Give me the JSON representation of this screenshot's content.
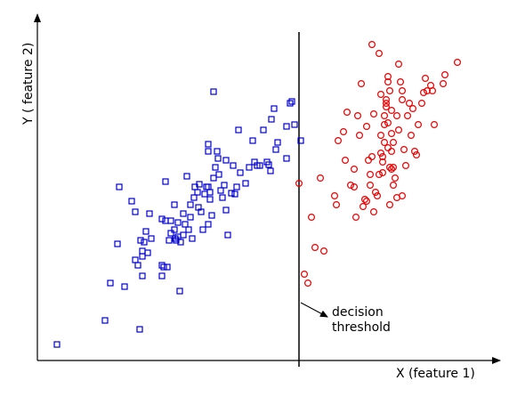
{
  "chart_data": {
    "type": "scatter",
    "xlabel": "X (feature 1)",
    "ylabel": "Y ( feature 2)",
    "threshold_x": 336,
    "annotation": {
      "line1": "decision",
      "line2": "threshold"
    },
    "xlim": [
      42,
      560
    ],
    "ylim": [
      405,
      15
    ],
    "series": [
      {
        "marker": "square",
        "color": "#0000cc",
        "points": [
          [
            64,
            387
          ],
          [
            118,
            360
          ],
          [
            157,
            370
          ],
          [
            124,
            318
          ],
          [
            140,
            322
          ],
          [
            132,
            274
          ],
          [
            134,
            210
          ],
          [
            148,
            226
          ],
          [
            152,
            238
          ],
          [
            152,
            292
          ],
          [
            155,
            298
          ],
          [
            160,
            282
          ],
          [
            158,
            270
          ],
          [
            162,
            272
          ],
          [
            160,
            288
          ],
          [
            160,
            310
          ],
          [
            164,
            260
          ],
          [
            168,
            240
          ],
          [
            166,
            284
          ],
          [
            170,
            268
          ],
          [
            182,
            246
          ],
          [
            182,
            298
          ],
          [
            182,
            310
          ],
          [
            184,
            300
          ],
          [
            186,
            248
          ],
          [
            188,
            300
          ],
          [
            186,
            204
          ],
          [
            190,
            270
          ],
          [
            192,
            262
          ],
          [
            192,
            248
          ],
          [
            196,
            258
          ],
          [
            196,
            230
          ],
          [
            197,
            268
          ],
          [
            198,
            270
          ],
          [
            200,
            250
          ],
          [
            200,
            266
          ],
          [
            203,
            272
          ],
          [
            202,
            327
          ],
          [
            206,
            240
          ],
          [
            206,
            264
          ],
          [
            210,
            198
          ],
          [
            212,
            258
          ],
          [
            214,
            244
          ],
          [
            214,
            230
          ],
          [
            216,
            268
          ],
          [
            218,
            222
          ],
          [
            219,
            210
          ],
          [
            222,
            216
          ],
          [
            223,
            233
          ],
          [
            226,
            238
          ],
          [
            224,
            207
          ],
          [
            228,
            258
          ],
          [
            230,
            218
          ],
          [
            232,
            210
          ],
          [
            234,
            210
          ],
          [
            236,
            224
          ],
          [
            236,
            216
          ],
          [
            234,
            252
          ],
          [
            238,
            242
          ],
          [
            240,
            200
          ],
          [
            242,
            188
          ],
          [
            244,
            170
          ],
          [
            245,
            178
          ],
          [
            246,
            196
          ],
          [
            248,
            214
          ],
          [
            250,
            222
          ],
          [
            252,
            208
          ],
          [
            254,
            236
          ],
          [
            254,
            180
          ],
          [
            256,
            264
          ],
          [
            260,
            217
          ],
          [
            262,
            186
          ],
          [
            264,
            218
          ],
          [
            266,
            210
          ],
          [
            268,
            146
          ],
          [
            270,
            194
          ],
          [
            276,
            206
          ],
          [
            280,
            188
          ],
          [
            284,
            158
          ],
          [
            286,
            182
          ],
          [
            289,
            186
          ],
          [
            292,
            186
          ],
          [
            296,
            146
          ],
          [
            300,
            182
          ],
          [
            302,
            185
          ],
          [
            304,
            192
          ],
          [
            305,
            134
          ],
          [
            308,
            122
          ],
          [
            310,
            168
          ],
          [
            312,
            160
          ],
          [
            322,
            178
          ],
          [
            322,
            142
          ],
          [
            326,
            116
          ],
          [
            328,
            114
          ],
          [
            331,
            140
          ],
          [
            338,
            158
          ],
          [
            234,
            162
          ],
          [
            234,
            170
          ],
          [
            240,
            103
          ],
          [
            208,
            252
          ]
        ]
      },
      {
        "marker": "circle",
        "color": "#ee0000",
        "points": [
          [
            336,
            206
          ],
          [
            342,
            308
          ],
          [
            346,
            318
          ],
          [
            350,
            244
          ],
          [
            354,
            278
          ],
          [
            360,
            200
          ],
          [
            364,
            282
          ],
          [
            376,
            220
          ],
          [
            378,
            230
          ],
          [
            380,
            158
          ],
          [
            388,
            180
          ],
          [
            390,
            126
          ],
          [
            394,
            208
          ],
          [
            398,
            190
          ],
          [
            400,
            244
          ],
          [
            402,
            130
          ],
          [
            404,
            152
          ],
          [
            406,
            94
          ],
          [
            408,
            232
          ],
          [
            410,
            224
          ],
          [
            412,
            142
          ],
          [
            412,
            226
          ],
          [
            414,
            180
          ],
          [
            416,
            196
          ],
          [
            416,
            208
          ],
          [
            418,
            176
          ],
          [
            418,
            50
          ],
          [
            420,
            128
          ],
          [
            422,
            216
          ],
          [
            424,
            220
          ],
          [
            426,
            60
          ],
          [
            426,
            196
          ],
          [
            428,
            106
          ],
          [
            428,
            172
          ],
          [
            428,
            152
          ],
          [
            430,
            194
          ],
          [
            430,
            182
          ],
          [
            432,
            130
          ],
          [
            432,
            140
          ],
          [
            434,
            120
          ],
          [
            432,
            160
          ],
          [
            434,
            116
          ],
          [
            434,
            112
          ],
          [
            436,
            138
          ],
          [
            436,
            166
          ],
          [
            436,
            86
          ],
          [
            436,
            92
          ],
          [
            438,
            102
          ],
          [
            438,
            230
          ],
          [
            438,
            188
          ],
          [
            440,
            190
          ],
          [
            440,
            124
          ],
          [
            440,
            170
          ],
          [
            440,
            150
          ],
          [
            442,
            160
          ],
          [
            442,
            188
          ],
          [
            442,
            208
          ],
          [
            444,
            200
          ],
          [
            446,
            130
          ],
          [
            448,
            72
          ],
          [
            448,
            146
          ],
          [
            450,
            92
          ],
          [
            452,
            102
          ],
          [
            452,
            112
          ],
          [
            452,
            220
          ],
          [
            454,
            168
          ],
          [
            456,
            186
          ],
          [
            458,
            130
          ],
          [
            460,
            116
          ],
          [
            462,
            152
          ],
          [
            464,
            122
          ],
          [
            466,
            170
          ],
          [
            468,
            174
          ],
          [
            470,
            140
          ],
          [
            474,
            116
          ],
          [
            476,
            104
          ],
          [
            478,
            88
          ],
          [
            480,
            102
          ],
          [
            484,
            96
          ],
          [
            486,
            102
          ],
          [
            488,
            140
          ],
          [
            498,
            94
          ],
          [
            500,
            84
          ],
          [
            514,
            70
          ],
          [
            446,
            222
          ],
          [
            430,
            176
          ],
          [
            420,
            238
          ],
          [
            398,
            210
          ],
          [
            386,
            148
          ]
        ]
      }
    ]
  }
}
